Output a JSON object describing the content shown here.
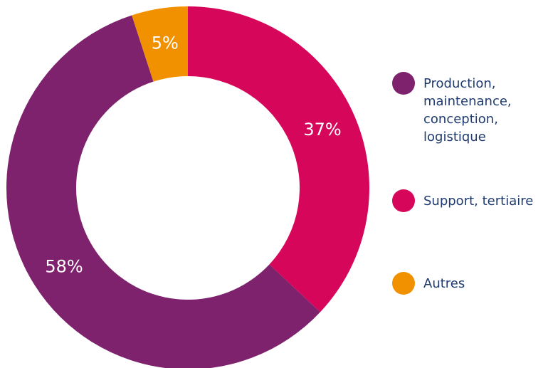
{
  "chart_data": {
    "type": "pie",
    "title": "",
    "slices": [
      {
        "label": "Support, tertiaire",
        "value": 37,
        "display": "37%",
        "color": "#d6065b"
      },
      {
        "label": "Production, maintenance, conception, logistique",
        "value": 58,
        "display": "58%",
        "color": "#7e226e"
      },
      {
        "label": "Autres",
        "value": 5,
        "display": "5%",
        "color": "#f29100"
      }
    ],
    "legend_position": "right",
    "legend": [
      {
        "label_lines": [
          "Production,",
          "maintenance,",
          "conception,",
          "logistique"
        ],
        "color": "#7e226e"
      },
      {
        "label_lines": [
          "Support, tertiaire"
        ],
        "color": "#d6065b"
      },
      {
        "label_lines": [
          "Autres"
        ],
        "color": "#f29100"
      }
    ]
  }
}
